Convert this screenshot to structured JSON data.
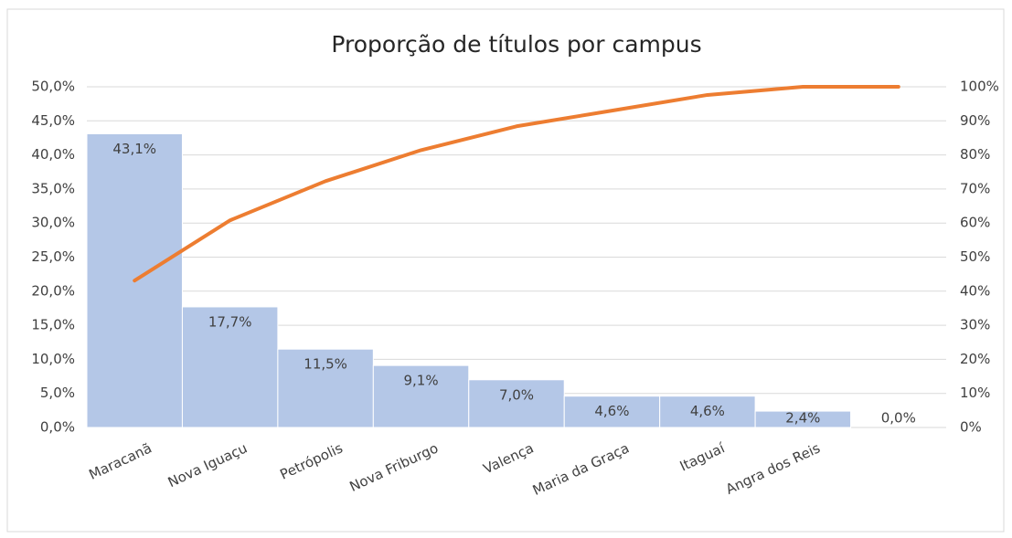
{
  "chart_data": {
    "type": "pareto",
    "title": "Proporção de títulos por campus",
    "categories": [
      "Maracanã",
      "Nova Iguaçu",
      "Petrópolis",
      "Nova Friburgo",
      "Valença",
      "Maria da Graça",
      "Itaguaí",
      "Angra dos Reis",
      null
    ],
    "series": [
      {
        "type": "bar",
        "color": "#b4c7e7",
        "values": [
          43.1,
          17.7,
          11.5,
          9.1,
          7.0,
          4.6,
          4.6,
          2.4,
          0.0
        ],
        "value_labels": [
          "43,1%",
          "17,7%",
          "11,5%",
          "9,1%",
          "7,0%",
          "4,6%",
          "4,6%",
          "2,4%",
          "0,0%"
        ]
      },
      {
        "type": "line",
        "axis": "y2",
        "color": "#ed7d31",
        "values": [
          43.1,
          60.8,
          72.3,
          81.4,
          88.4,
          93.0,
          97.6,
          100,
          100
        ]
      }
    ],
    "ylim": [
      0,
      50
    ],
    "yticks": [
      {
        "value": 0,
        "label": "0,0%"
      },
      {
        "value": 5,
        "label": "5,0%"
      },
      {
        "value": 10,
        "label": "10,0%"
      },
      {
        "value": 15,
        "label": "15,0%"
      },
      {
        "value": 20,
        "label": "20,0%"
      },
      {
        "value": 25,
        "label": "25,0%"
      },
      {
        "value": 30,
        "label": "30,0%"
      },
      {
        "value": 35,
        "label": "35,0%"
      },
      {
        "value": 40,
        "label": "40,0%"
      },
      {
        "value": 45,
        "label": "45,0%"
      },
      {
        "value": 50,
        "label": "50,0%"
      }
    ],
    "y2lim": [
      0,
      100
    ],
    "y2ticks": [
      {
        "value": 0,
        "label": "0%"
      },
      {
        "value": 10,
        "label": "10%"
      },
      {
        "value": 20,
        "label": "20%"
      },
      {
        "value": 30,
        "label": "30%"
      },
      {
        "value": 40,
        "label": "40%"
      },
      {
        "value": 50,
        "label": "50%"
      },
      {
        "value": 60,
        "label": "60%"
      },
      {
        "value": 70,
        "label": "70%"
      },
      {
        "value": 80,
        "label": "80%"
      },
      {
        "value": 90,
        "label": "90%"
      },
      {
        "value": 100,
        "label": "100%"
      }
    ],
    "grid": true
  }
}
